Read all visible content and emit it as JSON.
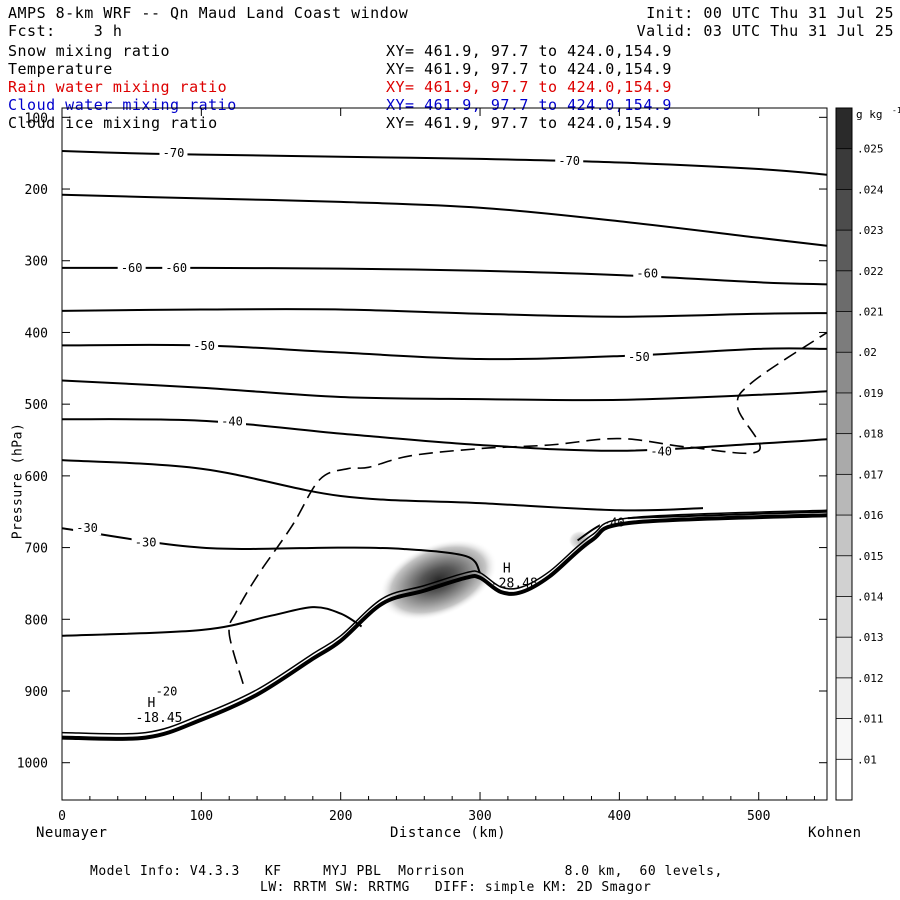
{
  "header": {
    "title": "AMPS 8-km WRF -- Qn Maud Land Coast window",
    "fcst": "Fcst:    3 h",
    "init": "Init: 00 UTC Thu 31 Jul 25",
    "valid": "Valid: 03 UTC Thu 31 Jul 25"
  },
  "fields": [
    {
      "name": "Snow mixing ratio",
      "xy": "XY= 461.9, 97.7 to 424.0,154.9",
      "color": "#000000"
    },
    {
      "name": "Temperature",
      "xy": "XY= 461.9, 97.7 to 424.0,154.9",
      "color": "#000000"
    },
    {
      "name": "Rain water mixing ratio",
      "xy": "XY= 461.9, 97.7 to 424.0,154.9",
      "color": "#dd0000"
    },
    {
      "name": "Cloud water mixing ratio",
      "xy": "XY= 461.9, 97.7 to 424.0,154.9",
      "color": "#0000cc"
    },
    {
      "name": "Cloud ice mixing ratio",
      "xy": "XY= 461.9, 97.7 to 424.0,154.9",
      "color": "#000000"
    }
  ],
  "footer": {
    "line1": "Model Info: V4.3.3   KF     MYJ PBL  Morrison            8.0 km,  60 levels,",
    "line2": "LW: RRTM SW: RRTMG   DIFF: simple KM: 2D Smagor"
  },
  "chart_data": {
    "type": "contour",
    "title": "",
    "xlabel": "Distance (km)",
    "ylabel": "Pressure (hPa)",
    "x_ticks": [
      0,
      100,
      200,
      300,
      400,
      500
    ],
    "y_ticks": [
      100,
      200,
      300,
      400,
      500,
      600,
      700,
      800,
      900,
      1000
    ],
    "xlim": [
      0,
      549
    ],
    "ylim": [
      1052,
      87
    ],
    "left_endpoint_label": "Neumayer",
    "right_endpoint_label": "Kohnen",
    "colorbar": {
      "unit": "g kg",
      "unit_exponent": "-1",
      "levels": [
        ".01",
        ".011",
        ".012",
        ".013",
        ".014",
        ".015",
        ".016",
        ".017",
        ".018",
        ".019",
        ".02",
        ".021",
        ".022",
        ".023",
        ".024",
        ".025"
      ],
      "colors": [
        "#ffffff",
        "#f7f7f7",
        "#efefef",
        "#e6e6e6",
        "#dcdcdc",
        "#d1d1d1",
        "#c5c5c5",
        "#b8b8b8",
        "#aaaaaa",
        "#9b9b9b",
        "#8c8c8c",
        "#7c7c7c",
        "#6c6c6c",
        "#5c5c5c",
        "#4c4c4c",
        "#3a3a3a",
        "#2a2a2a"
      ]
    },
    "temperature_isotherms": [
      {
        "label": "-70",
        "points": [
          [
            0,
            147
          ],
          [
            50,
            150
          ],
          [
            100,
            152
          ],
          [
            200,
            155
          ],
          [
            300,
            158
          ],
          [
            400,
            163
          ],
          [
            500,
            172
          ],
          [
            549,
            180
          ]
        ],
        "label_at": [
          [
            80,
            150
          ],
          [
            364,
            161
          ]
        ]
      },
      {
        "label": "",
        "points": [
          [
            0,
            208
          ],
          [
            100,
            213
          ],
          [
            200,
            218
          ],
          [
            300,
            226
          ],
          [
            400,
            245
          ],
          [
            500,
            268
          ],
          [
            549,
            279
          ]
        ],
        "label_at": []
      },
      {
        "label": "-60",
        "points": [
          [
            0,
            310
          ],
          [
            100,
            310
          ],
          [
            200,
            311
          ],
          [
            300,
            314
          ],
          [
            400,
            320
          ],
          [
            500,
            330
          ],
          [
            549,
            333
          ]
        ],
        "label_at": [
          [
            50,
            310
          ],
          [
            82,
            310
          ],
          [
            420,
            318
          ]
        ]
      },
      {
        "label": "",
        "points": [
          [
            0,
            370
          ],
          [
            100,
            368
          ],
          [
            200,
            368
          ],
          [
            300,
            374
          ],
          [
            400,
            378
          ],
          [
            500,
            374
          ],
          [
            549,
            373
          ]
        ],
        "label_at": []
      },
      {
        "label": "-50",
        "points": [
          [
            0,
            418
          ],
          [
            100,
            418
          ],
          [
            200,
            428
          ],
          [
            300,
            437
          ],
          [
            400,
            433
          ],
          [
            500,
            423
          ],
          [
            549,
            423
          ]
        ],
        "label_at": [
          [
            102,
            419
          ],
          [
            414,
            434
          ]
        ]
      },
      {
        "label": "",
        "points": [
          [
            0,
            467
          ],
          [
            100,
            477
          ],
          [
            200,
            490
          ],
          [
            300,
            493
          ],
          [
            400,
            494
          ],
          [
            500,
            487
          ],
          [
            549,
            482
          ]
        ],
        "label_at": []
      },
      {
        "label": "-40",
        "points": [
          [
            0,
            521
          ],
          [
            100,
            523
          ],
          [
            200,
            541
          ],
          [
            300,
            557
          ],
          [
            400,
            565
          ],
          [
            500,
            555
          ],
          [
            549,
            549
          ]
        ],
        "label_at": [
          [
            122,
            524
          ],
          [
            430,
            566
          ]
        ]
      },
      {
        "label": "",
        "points": [
          [
            0,
            578
          ],
          [
            100,
            590
          ],
          [
            200,
            628
          ],
          [
            300,
            638
          ],
          [
            400,
            648
          ],
          [
            460,
            645
          ]
        ],
        "label_at": []
      },
      {
        "label": "-30",
        "points": [
          [
            0,
            673
          ],
          [
            100,
            700
          ],
          [
            200,
            700
          ],
          [
            245,
            702
          ],
          [
            290,
            712
          ],
          [
            300,
            735
          ]
        ],
        "label_at": [
          [
            18,
            673
          ],
          [
            60,
            693
          ]
        ]
      },
      {
        "label": "-20",
        "points": [
          [
            0,
            823
          ],
          [
            100,
            815
          ],
          [
            150,
            795
          ],
          [
            180,
            783
          ],
          [
            200,
            792
          ],
          [
            215,
            810
          ]
        ],
        "label_at": [
          [
            75,
            901
          ]
        ]
      },
      {
        "label": "-40",
        "points": [
          [
            370,
            690
          ],
          [
            385,
            670
          ],
          [
            400,
            660
          ],
          [
            450,
            656
          ],
          [
            549,
            650
          ]
        ],
        "label_at": [
          [
            396,
            665
          ]
        ]
      }
    ],
    "snow_contour_dashed": {
      "points": [
        [
          130,
          890
        ],
        [
          120,
          820
        ],
        [
          125,
          790
        ],
        [
          140,
          740
        ],
        [
          165,
          670
        ],
        [
          185,
          605
        ],
        [
          205,
          590
        ],
        [
          220,
          588
        ],
        [
          250,
          572
        ],
        [
          300,
          562
        ],
        [
          350,
          557
        ],
        [
          400,
          548
        ],
        [
          450,
          560
        ],
        [
          500,
          565
        ],
        [
          485,
          505
        ],
        [
          495,
          470
        ],
        [
          549,
          400
        ]
      ]
    },
    "cloud_ice_shading": {
      "center_km": 270,
      "center_hPa": 745,
      "max_value": ".025"
    },
    "terrain": {
      "points": [
        [
          0,
          965
        ],
        [
          60,
          965
        ],
        [
          100,
          940
        ],
        [
          140,
          905
        ],
        [
          180,
          855
        ],
        [
          200,
          830
        ],
        [
          230,
          778
        ],
        [
          260,
          760
        ],
        [
          290,
          742
        ],
        [
          300,
          742
        ],
        [
          315,
          762
        ],
        [
          330,
          762
        ],
        [
          350,
          740
        ],
        [
          380,
          690
        ],
        [
          410,
          665
        ],
        [
          549,
          655
        ]
      ]
    },
    "extrema": [
      {
        "symbol": "H",
        "value": "-18.45",
        "x": 70,
        "p": 928
      },
      {
        "symbol": "H",
        "value": "-28.48",
        "x": 325,
        "p": 740
      }
    ]
  }
}
